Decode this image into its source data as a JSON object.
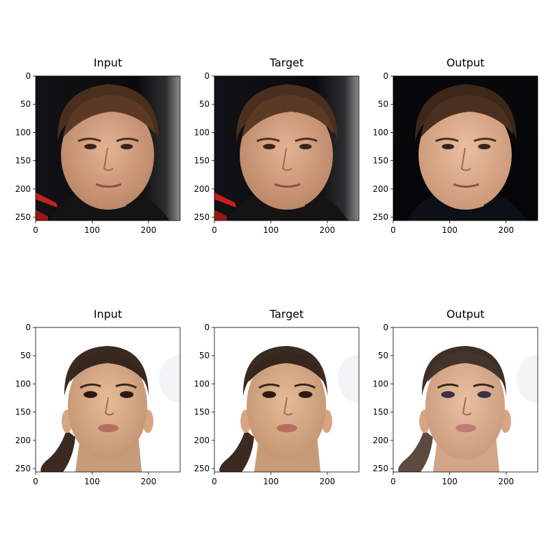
{
  "figure": {
    "rows": [
      {
        "subject": "man",
        "panels": [
          {
            "title": "Input",
            "variant": "input"
          },
          {
            "title": "Target",
            "variant": "target"
          },
          {
            "title": "Output",
            "variant": "output"
          }
        ]
      },
      {
        "subject": "woman",
        "panels": [
          {
            "title": "Input",
            "variant": "input"
          },
          {
            "title": "Target",
            "variant": "target"
          },
          {
            "title": "Output",
            "variant": "output"
          }
        ]
      }
    ],
    "x_ticks": [
      "0",
      "100",
      "200"
    ],
    "y_ticks": [
      "0",
      "50",
      "100",
      "150",
      "200",
      "250"
    ],
    "image_extent": [
      0,
      256
    ]
  },
  "colors": {
    "man_background": "#0b0b10",
    "man_skin": "#d39f7e",
    "man_hair": "#4a2f1e",
    "man_shirt": "#141414",
    "woman_background": "#ffffff",
    "woman_skin": "#d6a987",
    "woman_hair": "#3b2a20",
    "red_accent": "#c81e1e"
  }
}
